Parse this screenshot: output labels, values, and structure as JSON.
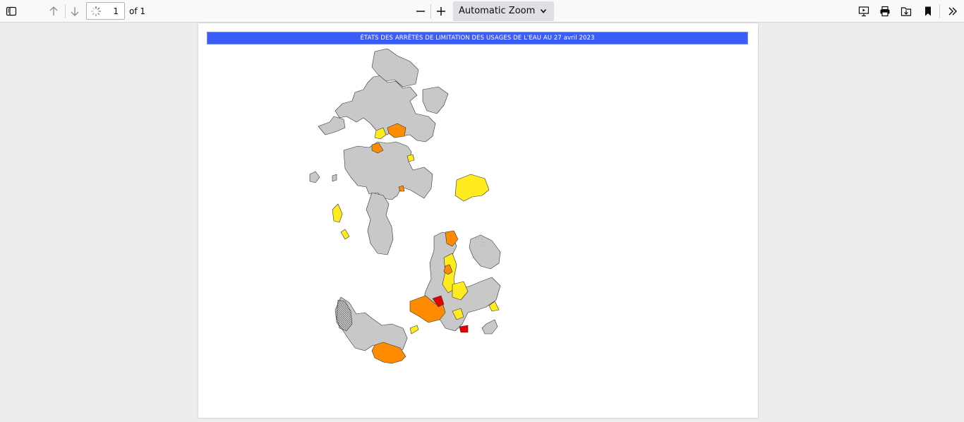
{
  "toolbar": {
    "sidebar_toggle": "sidebar-toggle-icon",
    "page_number": "1",
    "page_count_label": "of 1",
    "zoom_label": "Automatic Zoom",
    "icons": [
      "sidebar-toggle-icon",
      "arrow-up-icon",
      "arrow-down-icon",
      "zoom-out-icon",
      "zoom-in-icon",
      "presentation-icon",
      "print-icon",
      "save-icon",
      "bookmark-icon",
      "chevrons-right-icon"
    ]
  },
  "document": {
    "banner_title": "ÉTATS DES ARRÊTÉS DE LIMITATION DES USAGES DE L'EAU AU 27 avril 2023",
    "map_colors": {
      "none": "#c8c8c8",
      "vigilance": "#ffec1f",
      "alerte": "#ff8c00",
      "crise": "#e60000",
      "border": "#333333"
    }
  },
  "colors": {
    "toolbar_bg": "#f9f9fa",
    "viewer_bg": "#ededf0",
    "banner_bg": "#3a5cf9"
  }
}
